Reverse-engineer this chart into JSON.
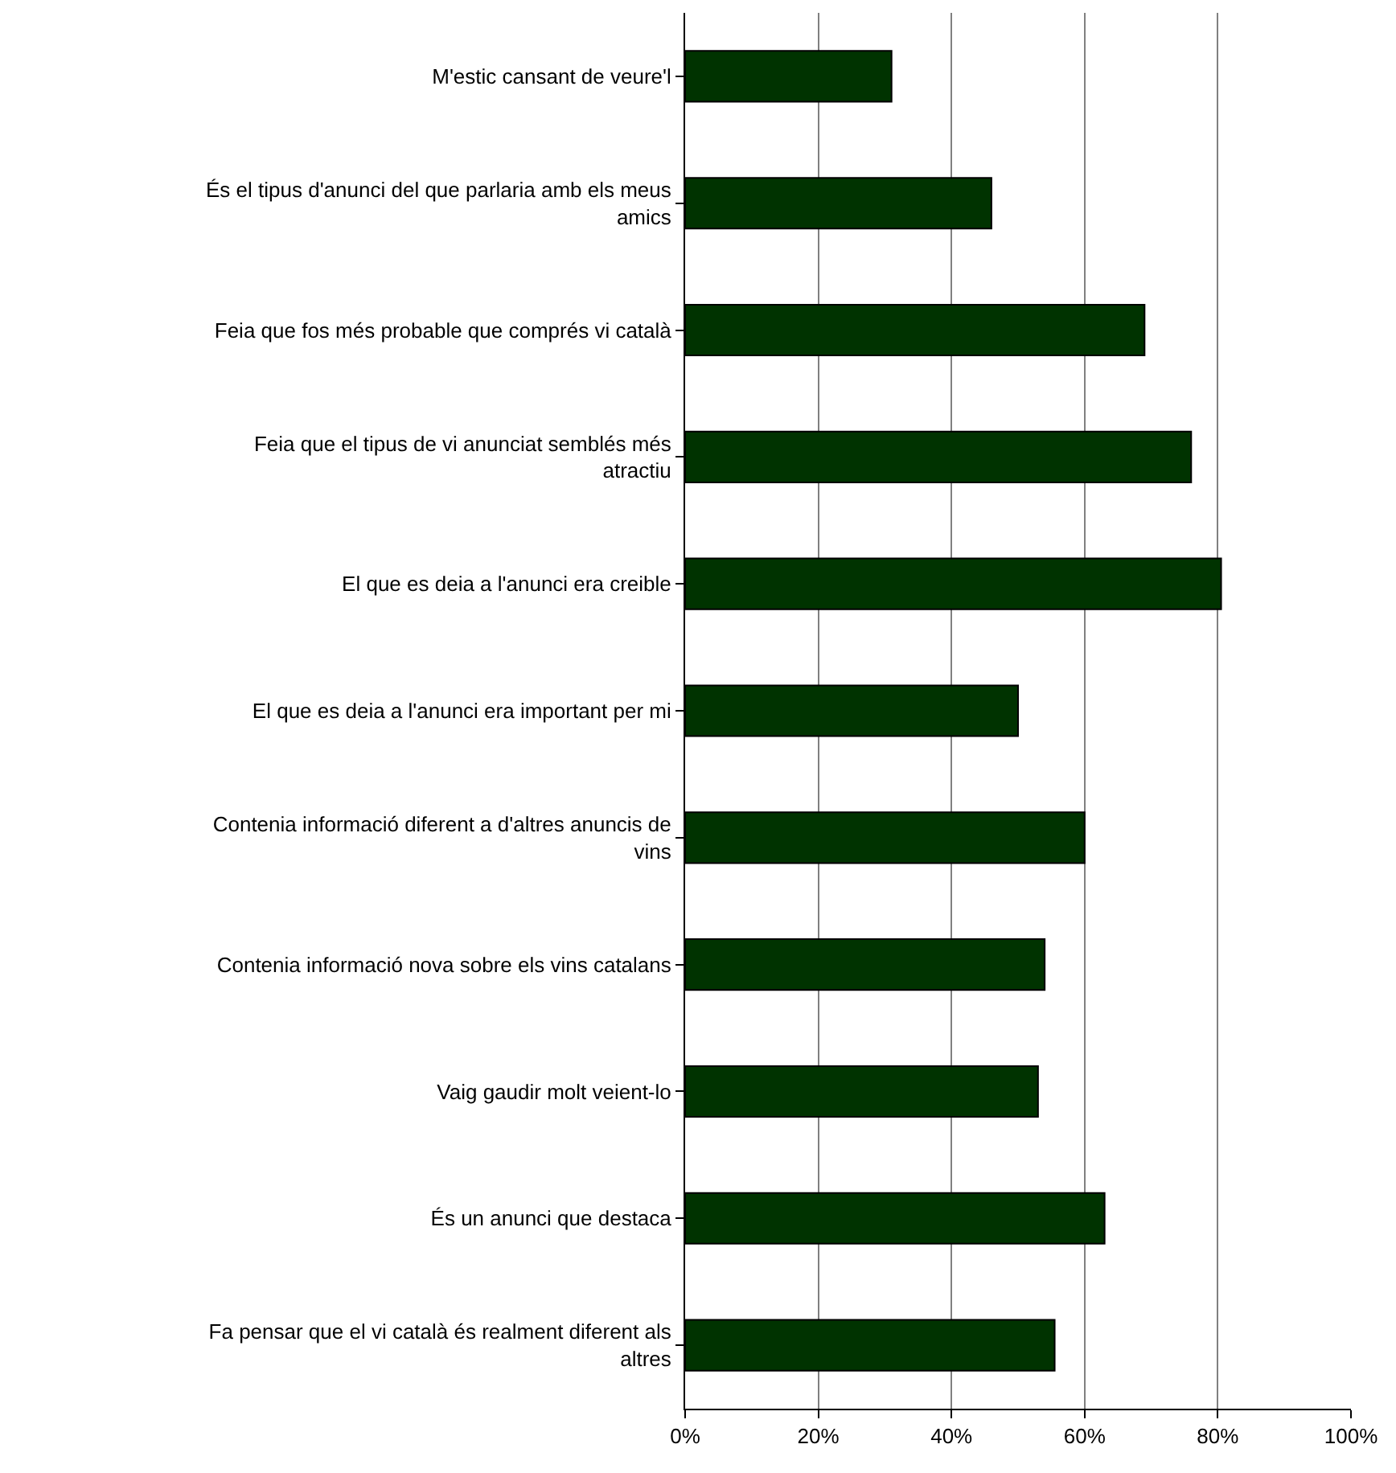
{
  "chart_data": {
    "type": "bar",
    "orientation": "horizontal",
    "categories": [
      "M'estic cansant de veure'l",
      "És el tipus d'anunci del que parlaria amb els meus amics",
      "Feia que fos més probable que comprés vi català",
      "Feia que el tipus de vi anunciat semblés més atractiu",
      "El que es deia a l'anunci era creible",
      "El que es deia a l'anunci era important per mi",
      "Contenia informació diferent a d'altres anuncis de vins",
      "Contenia informació nova sobre els vins catalans",
      "Vaig gaudir molt veient-lo",
      "És un anunci que destaca",
      "Fa pensar que el vi català és realment diferent als altres"
    ],
    "values": [
      31,
      46,
      69,
      76,
      80.5,
      50,
      60,
      54,
      53,
      63,
      55.5
    ],
    "color": "#003300",
    "xlim": [
      0,
      100
    ],
    "xticks": [
      {
        "value": 0,
        "label": "0%"
      },
      {
        "value": 20,
        "label": "20%"
      },
      {
        "value": 40,
        "label": "40%"
      },
      {
        "value": 60,
        "label": "60%"
      },
      {
        "value": 80,
        "label": "80%"
      },
      {
        "value": 100,
        "label": "100%"
      }
    ],
    "grid": "x"
  }
}
